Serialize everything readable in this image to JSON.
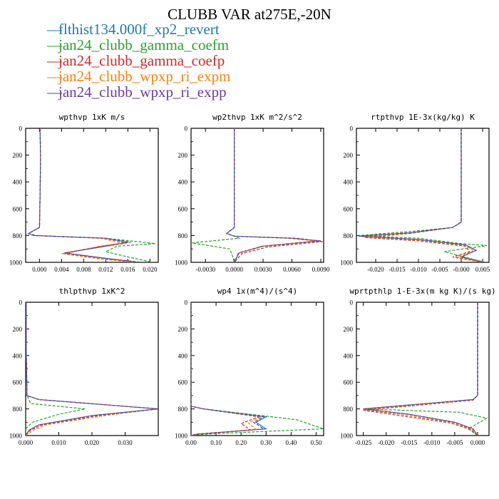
{
  "title": "CLUBB VAR at275E,-20N",
  "legend": [
    {
      "name": "flthist134.000f_xp2_revert",
      "color": "#1f77b4"
    },
    {
      "name": "jan24_clubb_gamma_coefm",
      "color": "#2ca02c"
    },
    {
      "name": "jan24_clubb_gamma_coefp",
      "color": "#d62728"
    },
    {
      "name": "jan24_clubb_wpxp_ri_expm",
      "color": "#ff7f0e"
    },
    {
      "name": "jan24_clubb_wpxp_ri_expp",
      "color": "#6a3d9a"
    }
  ],
  "chart_data": [
    {
      "type": "line",
      "title": "wpthvp   1xK m/s",
      "xlim": [
        -0.0025,
        0.0215
      ],
      "ylim": [
        1000,
        0
      ],
      "xticks": [
        "0.000",
        "0.004",
        "0.008",
        "0.012",
        "0.016",
        "0.020"
      ],
      "xtick_values": [
        0,
        0.004,
        0.008,
        0.012,
        0.016,
        0.02
      ],
      "yticks": [
        "0",
        "200",
        "400",
        "600",
        "800",
        "1000"
      ],
      "series": [
        {
          "name": "flthist134.000f_xp2_revert",
          "x": [
            0.0001,
            0.0002,
            0.0001,
            0.0,
            -0.002,
            -0.001,
            0.012,
            0.016,
            0.012,
            0.0045,
            0.012,
            0.018
          ],
          "y": [
            0,
            220,
            500,
            740,
            785,
            800,
            820,
            850,
            880,
            930,
            970,
            1000
          ]
        },
        {
          "name": "jan24_clubb_gamma_coefm",
          "x": [
            0.0001,
            0.0002,
            0.0001,
            0.0,
            -0.002,
            -0.0005,
            0.012,
            0.021,
            0.014,
            0.012,
            0.016,
            0.0205
          ],
          "y": [
            0,
            220,
            500,
            740,
            785,
            800,
            820,
            860,
            880,
            920,
            960,
            1000
          ]
        },
        {
          "name": "jan24_clubb_gamma_coefp",
          "x": [
            0.0001,
            0.0002,
            0.0001,
            0.0,
            -0.002,
            -0.001,
            0.011,
            0.0155,
            0.011,
            0.0045,
            0.0115,
            0.0175
          ],
          "y": [
            0,
            220,
            500,
            740,
            785,
            800,
            820,
            855,
            880,
            935,
            975,
            1000
          ]
        },
        {
          "name": "jan24_clubb_wpxp_ri_expm",
          "x": [
            0.0001,
            0.0002,
            0.0001,
            0.0,
            -0.002,
            -0.001,
            0.011,
            0.015,
            0.011,
            0.004,
            0.011,
            0.017
          ],
          "y": [
            0,
            220,
            500,
            740,
            785,
            800,
            820,
            855,
            880,
            935,
            975,
            1000
          ]
        },
        {
          "name": "jan24_clubb_wpxp_ri_expp",
          "x": [
            0.0001,
            0.0002,
            0.0001,
            0.0,
            -0.002,
            -0.001,
            0.012,
            0.0165,
            0.012,
            0.0045,
            0.012,
            0.0185
          ],
          "y": [
            0,
            220,
            500,
            740,
            785,
            800,
            820,
            850,
            880,
            930,
            970,
            1000
          ]
        }
      ]
    },
    {
      "type": "line",
      "title": "wp2thvp   1xK m^2/s^2",
      "xlim": [
        -0.0045,
        0.0093
      ],
      "ylim": [
        1000,
        0
      ],
      "xticks": [
        "-0.0030",
        "0.0000",
        "0.0030",
        "0.0060",
        "0.0090"
      ],
      "xtick_values": [
        -0.003,
        0,
        0.003,
        0.006,
        0.009
      ],
      "yticks": [
        "0",
        "200",
        "400",
        "600",
        "800",
        "1000"
      ],
      "series": [
        {
          "name": "flthist134.000f_xp2_revert",
          "x": [
            0.0,
            0.0,
            0.0,
            -0.0008,
            0.0,
            0.006,
            0.0088,
            0.003,
            0.0005,
            0.0
          ],
          "y": [
            0,
            400,
            740,
            785,
            805,
            820,
            840,
            880,
            930,
            1000
          ]
        },
        {
          "name": "jan24_clubb_gamma_coefm",
          "x": [
            0.0,
            0.0,
            0.0,
            -0.0008,
            0.0,
            0.0005,
            -0.0044,
            -0.0005,
            -0.0002,
            0.0
          ],
          "y": [
            0,
            400,
            740,
            785,
            805,
            820,
            855,
            900,
            950,
            1000
          ]
        },
        {
          "name": "jan24_clubb_gamma_coefp",
          "x": [
            0.0,
            0.0,
            0.0,
            -0.0008,
            0.0,
            0.0065,
            0.0092,
            0.0035,
            0.0008,
            0.0
          ],
          "y": [
            0,
            400,
            740,
            785,
            805,
            820,
            845,
            885,
            935,
            1000
          ]
        },
        {
          "name": "jan24_clubb_wpxp_ri_expm",
          "x": [
            0.0,
            0.0,
            0.0,
            -0.0008,
            0.0,
            0.0055,
            0.0085,
            0.0028,
            0.0004,
            0.0
          ],
          "y": [
            0,
            400,
            740,
            785,
            805,
            820,
            840,
            880,
            930,
            1000
          ]
        },
        {
          "name": "jan24_clubb_wpxp_ri_expp",
          "x": [
            0.0,
            0.0,
            0.0,
            -0.0008,
            0.0,
            0.006,
            0.009,
            0.003,
            0.0005,
            0.0
          ],
          "y": [
            0,
            400,
            740,
            785,
            805,
            820,
            840,
            880,
            930,
            1000
          ]
        }
      ]
    },
    {
      "type": "line",
      "title": "rtpthvp   1E-3x(kg/kg) K",
      "xlim": [
        -0.0245,
        0.0065
      ],
      "ylim": [
        1000,
        0
      ],
      "xticks": [
        "-0.020",
        "-0.015",
        "-0.010",
        "-0.005",
        "-0.000",
        "0.005"
      ],
      "xtick_values": [
        -0.02,
        -0.015,
        -0.01,
        -0.005,
        0,
        0.005
      ],
      "yticks": [
        "0",
        "200",
        "400",
        "600",
        "800",
        "1000"
      ],
      "series": [
        {
          "name": "flthist134.000f_xp2_revert",
          "x": [
            0.0,
            0.0,
            0.0,
            -0.002,
            -0.012,
            -0.024,
            -0.01,
            0.001,
            0.0035,
            0.0,
            0.0055
          ],
          "y": [
            0,
            400,
            700,
            740,
            780,
            805,
            830,
            870,
            910,
            960,
            1000
          ]
        },
        {
          "name": "jan24_clubb_gamma_coefm",
          "x": [
            0.0,
            0.0,
            0.0,
            -0.002,
            -0.012,
            -0.024,
            -0.01,
            0.0,
            0.006,
            -0.004,
            0.0055
          ],
          "y": [
            0,
            400,
            700,
            740,
            770,
            800,
            820,
            860,
            875,
            920,
            1000
          ]
        },
        {
          "name": "jan24_clubb_gamma_coefp",
          "x": [
            0.0,
            0.0,
            0.0,
            -0.002,
            -0.012,
            -0.0225,
            -0.01,
            0.001,
            0.002,
            -0.002,
            0.005
          ],
          "y": [
            0,
            400,
            700,
            740,
            785,
            815,
            840,
            880,
            920,
            960,
            1000
          ]
        },
        {
          "name": "jan24_clubb_wpxp_ri_expm",
          "x": [
            0.0,
            0.0,
            0.0,
            -0.002,
            -0.012,
            -0.023,
            -0.01,
            0.001,
            0.003,
            -0.001,
            0.005
          ],
          "y": [
            0,
            400,
            700,
            740,
            783,
            810,
            835,
            875,
            915,
            960,
            1000
          ]
        },
        {
          "name": "jan24_clubb_wpxp_ri_expp",
          "x": [
            0.0,
            0.0,
            0.0,
            -0.002,
            -0.012,
            -0.024,
            -0.01,
            0.001,
            0.0035,
            0.0,
            0.0055
          ],
          "y": [
            0,
            400,
            700,
            740,
            780,
            805,
            830,
            870,
            910,
            960,
            1000
          ]
        }
      ]
    },
    {
      "type": "line",
      "title": "thlpthvp   1xK^2",
      "xlim": [
        0,
        0.04
      ],
      "ylim": [
        1000,
        0
      ],
      "xticks": [
        "0.000",
        "0.010",
        "0.020",
        "0.030"
      ],
      "xtick_values": [
        0,
        0.01,
        0.02,
        0.03
      ],
      "yticks": [
        "0",
        "200",
        "400",
        "600",
        "800",
        "1000"
      ],
      "series": [
        {
          "name": "flthist134.000f_xp2_revert",
          "x": [
            0.0002,
            0.0002,
            0.0004,
            0.004,
            0.04,
            0.02,
            0.004,
            0.001,
            0.0
          ],
          "y": [
            0,
            400,
            700,
            730,
            800,
            850,
            920,
            960,
            1000
          ]
        },
        {
          "name": "jan24_clubb_gamma_coefm",
          "x": [
            0.0002,
            0.0002,
            0.0004,
            0.0015,
            0.018,
            0.01,
            0.002,
            0.0,
            0.0
          ],
          "y": [
            0,
            400,
            700,
            760,
            800,
            840,
            900,
            950,
            1000
          ]
        },
        {
          "name": "jan24_clubb_gamma_coefp",
          "x": [
            0.0002,
            0.0002,
            0.0004,
            0.004,
            0.04,
            0.022,
            0.005,
            0.0015,
            0.0
          ],
          "y": [
            0,
            400,
            700,
            730,
            800,
            850,
            920,
            960,
            1000
          ]
        },
        {
          "name": "jan24_clubb_wpxp_ri_expm",
          "x": [
            0.0002,
            0.0002,
            0.0004,
            0.004,
            0.04,
            0.024,
            0.006,
            0.0025,
            0.0
          ],
          "y": [
            0,
            400,
            700,
            730,
            800,
            850,
            920,
            960,
            1000
          ]
        },
        {
          "name": "jan24_clubb_wpxp_ri_expp",
          "x": [
            0.0002,
            0.0002,
            0.0004,
            0.004,
            0.04,
            0.02,
            0.004,
            0.001,
            0.0
          ],
          "y": [
            0,
            400,
            700,
            730,
            800,
            850,
            920,
            960,
            1000
          ]
        }
      ]
    },
    {
      "type": "line",
      "title": "wp4   1x(m^4)/(s^4)",
      "xlim": [
        0,
        0.53
      ],
      "ylim": [
        1000,
        0
      ],
      "xticks": [
        "0.00",
        "0.10",
        "0.20",
        "0.30",
        "0.40",
        "0.50"
      ],
      "xtick_values": [
        0,
        0.1,
        0.2,
        0.3,
        0.4,
        0.5
      ],
      "yticks": [
        "0",
        "200",
        "400",
        "600",
        "800",
        "1000"
      ],
      "series": [
        {
          "name": "flthist134.000f_xp2_revert",
          "x": [
            0.0,
            0.0,
            0.0,
            0.05,
            0.3,
            0.26,
            0.3,
            0.02,
            0.0
          ],
          "y": [
            0,
            400,
            780,
            800,
            860,
            900,
            950,
            990,
            1000
          ]
        },
        {
          "name": "jan24_clubb_gamma_coefm",
          "x": [
            0.0,
            0.0,
            0.0,
            0.05,
            0.42,
            0.53,
            0.1,
            0.02,
            0.0
          ],
          "y": [
            0,
            400,
            780,
            800,
            880,
            950,
            985,
            995,
            1000
          ]
        },
        {
          "name": "jan24_clubb_gamma_coefp",
          "x": [
            0.0,
            0.0,
            0.0,
            0.05,
            0.27,
            0.2,
            0.24,
            0.02,
            0.0
          ],
          "y": [
            0,
            400,
            780,
            800,
            860,
            910,
            960,
            990,
            1000
          ]
        },
        {
          "name": "jan24_clubb_wpxp_ri_expm",
          "x": [
            0.0,
            0.0,
            0.0,
            0.05,
            0.28,
            0.23,
            0.26,
            0.02,
            0.0
          ],
          "y": [
            0,
            400,
            780,
            800,
            860,
            905,
            955,
            990,
            1000
          ]
        },
        {
          "name": "jan24_clubb_wpxp_ri_expp",
          "x": [
            0.0,
            0.0,
            0.0,
            0.05,
            0.29,
            0.25,
            0.29,
            0.02,
            0.0
          ],
          "y": [
            0,
            400,
            780,
            800,
            860,
            900,
            950,
            990,
            1000
          ]
        }
      ]
    },
    {
      "type": "line",
      "title": "wprtpthlp   1-E-3x(m kg K)/(s kg)",
      "xlim": [
        -0.0265,
        0.0025
      ],
      "ylim": [
        1000,
        0
      ],
      "xticks": [
        "-0.025",
        "-0.020",
        "-0.015",
        "-0.010",
        "-0.005",
        "0.000"
      ],
      "xtick_values": [
        -0.025,
        -0.02,
        -0.015,
        -0.01,
        -0.005,
        0
      ],
      "yticks": [
        "0",
        "200",
        "400",
        "600",
        "800",
        "1000"
      ],
      "series": [
        {
          "name": "flthist134.000f_xp2_revert",
          "x": [
            0.0,
            0.0,
            0.0,
            -0.001,
            -0.025,
            -0.015,
            -0.005,
            -0.001,
            0.0
          ],
          "y": [
            0,
            400,
            700,
            730,
            800,
            840,
            900,
            950,
            1000
          ]
        },
        {
          "name": "jan24_clubb_gamma_coefm",
          "x": [
            0.0,
            0.0,
            0.0,
            -0.001,
            -0.025,
            -0.004,
            0.002,
            -0.002,
            0.0
          ],
          "y": [
            0,
            400,
            700,
            730,
            800,
            825,
            870,
            950,
            1000
          ]
        },
        {
          "name": "jan24_clubb_gamma_coefp",
          "x": [
            0.0,
            0.0,
            0.0,
            -0.001,
            -0.025,
            -0.017,
            -0.006,
            -0.0015,
            0.0
          ],
          "y": [
            0,
            400,
            700,
            735,
            810,
            850,
            905,
            955,
            1000
          ]
        },
        {
          "name": "jan24_clubb_wpxp_ri_expm",
          "x": [
            0.0,
            0.0,
            0.0,
            -0.001,
            -0.025,
            -0.016,
            -0.0055,
            -0.0012,
            0.0
          ],
          "y": [
            0,
            400,
            700,
            732,
            805,
            845,
            902,
            952,
            1000
          ]
        },
        {
          "name": "jan24_clubb_wpxp_ri_expp",
          "x": [
            0.0,
            0.0,
            0.0,
            -0.001,
            -0.025,
            -0.015,
            -0.005,
            -0.001,
            0.0
          ],
          "y": [
            0,
            400,
            700,
            730,
            800,
            840,
            900,
            950,
            1000
          ]
        }
      ]
    }
  ]
}
